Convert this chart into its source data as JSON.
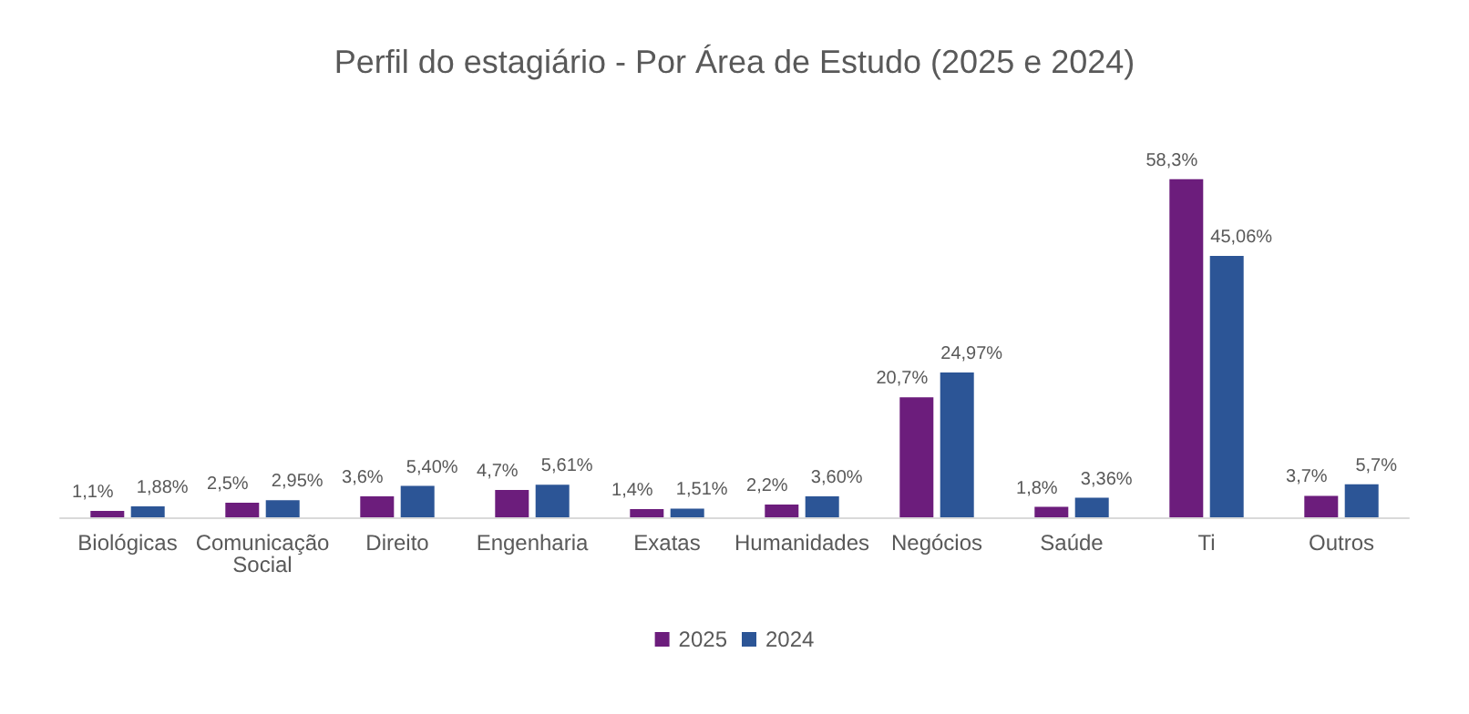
{
  "chart_data": {
    "type": "bar",
    "title": "Perfil do estagiário - Por Área de Estudo (2025 e 2024)",
    "categories": [
      "Biológicas",
      "Comunicação Social",
      "Direito",
      "Engenharia",
      "Exatas",
      "Humanidades",
      "Negócios",
      "Saúde",
      "Ti",
      "Outros"
    ],
    "series": [
      {
        "name": "2025",
        "color": "#6c1d7c",
        "values": [
          1.1,
          2.5,
          3.6,
          4.7,
          1.4,
          2.2,
          20.7,
          1.8,
          58.3,
          3.7
        ],
        "value_labels": [
          "1,1%",
          "2,5%",
          "3,6%",
          "4,7%",
          "1,4%",
          "2,2%",
          "20,7%",
          "1,8%",
          "58,3%",
          "3,7%"
        ]
      },
      {
        "name": "2024",
        "color": "#2c5596",
        "values": [
          1.88,
          2.95,
          5.4,
          5.61,
          1.51,
          3.6,
          24.97,
          3.36,
          45.06,
          5.7
        ],
        "value_labels": [
          "1,88%",
          "2,95%",
          "5,40%",
          "5,61%",
          "1,51%",
          "3,60%",
          "24,97%",
          "3,36%",
          "45,06%",
          "5,7%"
        ]
      }
    ],
    "legend": "bottom"
  }
}
